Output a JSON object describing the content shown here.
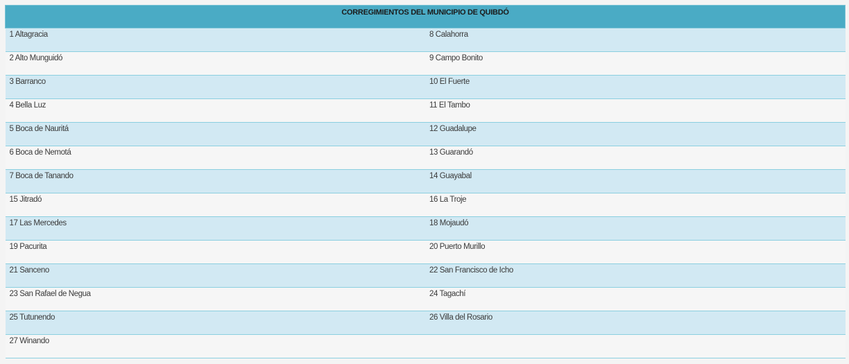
{
  "table": {
    "title": "CORREGIMIENTOS DEL MUNICIPIO DE QUIBDÓ",
    "rows": [
      [
        "1 Altagracia",
        "8 Calahorra"
      ],
      [
        "2 Alto Munguidó",
        "9 Campo Bonito"
      ],
      [
        "3 Barranco",
        "10 El Fuerte"
      ],
      [
        "4 Bella Luz",
        "11 El Tambo"
      ],
      [
        "5 Boca de Nauritá",
        "12 Guadalupe"
      ],
      [
        "6 Boca de Nemotá",
        "13 Guarandó"
      ],
      [
        "7 Boca de Tanando",
        "14 Guayabal"
      ],
      [
        "15 Jitradó",
        "16 La Troje"
      ],
      [
        "17 Las Mercedes",
        "18 Mojaudó"
      ],
      [
        "19 Pacurita",
        "20 Puerto Murillo"
      ],
      [
        "21 Sanceno",
        "22 San Francisco de Icho"
      ],
      [
        "23 San Rafael de  Negua",
        "24 Tagachí"
      ],
      [
        "25 Tutunendo",
        "26 Villa del Rosario"
      ],
      [
        "27 Winando",
        ""
      ]
    ]
  }
}
